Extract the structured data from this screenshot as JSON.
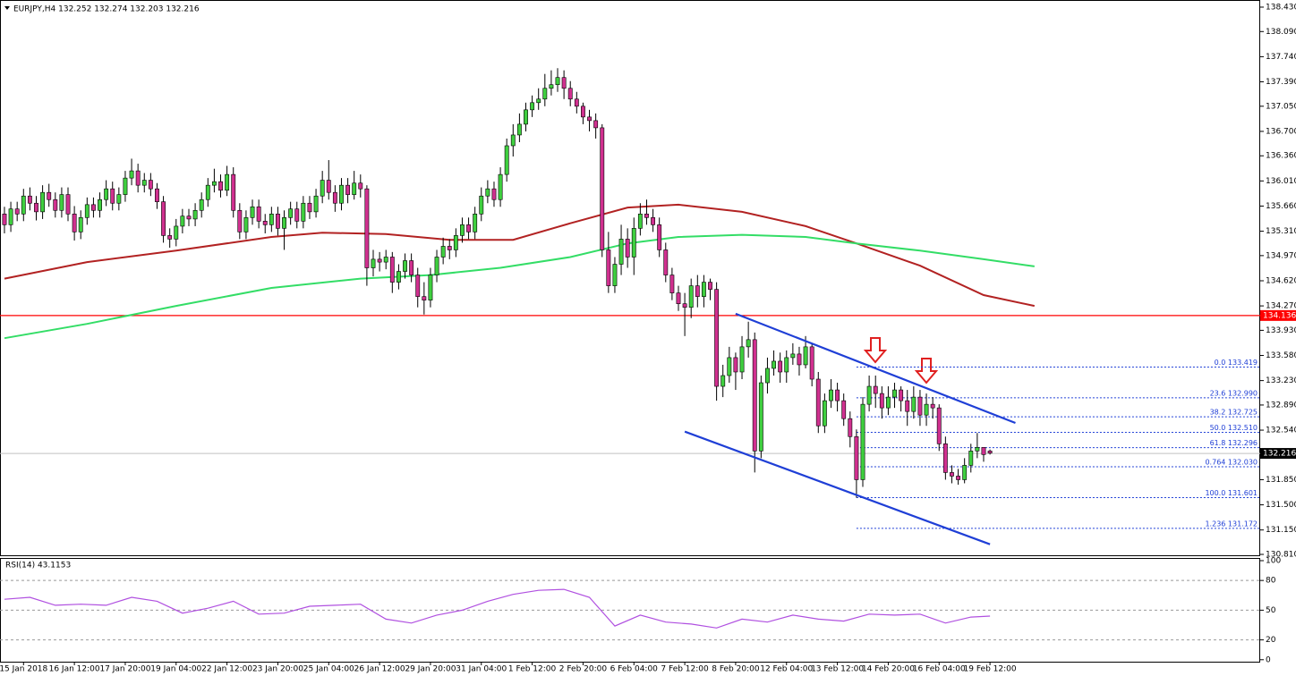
{
  "chart_data": [
    {
      "type": "candlestick",
      "title": "EURJPY,H4  132.252 132.274 132.203 132.216",
      "up_color": "#3fcf3f",
      "down_color": "#d0308f",
      "open": [
        135.55,
        135.4,
        135.62,
        135.55,
        135.8,
        135.7,
        135.58,
        135.85,
        135.75,
        135.6,
        135.82,
        135.55,
        135.3,
        135.5,
        135.68,
        135.6,
        135.75,
        135.9,
        135.7,
        135.82,
        136.05,
        136.15,
        135.95,
        136.02,
        135.9,
        135.72,
        135.25,
        135.2,
        135.38,
        135.52,
        135.48,
        135.6,
        135.75,
        135.95,
        136.0,
        135.88,
        136.1,
        135.6,
        135.3,
        135.5,
        135.65,
        135.45,
        135.4,
        135.55,
        135.35,
        135.5,
        135.62,
        135.45,
        135.7,
        135.58,
        135.8,
        136.02,
        135.85,
        135.7,
        135.95,
        135.82,
        135.98,
        135.9,
        134.8,
        134.92,
        134.88,
        134.95,
        134.6,
        134.75,
        134.9,
        134.7,
        134.4,
        134.35,
        134.7,
        134.95,
        135.1,
        135.05,
        135.25,
        135.4,
        135.3,
        135.55,
        135.8,
        135.9,
        135.75,
        136.1,
        136.5,
        136.65,
        136.8,
        137.0,
        137.1,
        137.15,
        137.3,
        137.35,
        137.45,
        137.3,
        137.15,
        137.05,
        136.9,
        136.85,
        136.75,
        135.05,
        134.55,
        134.85,
        135.2,
        134.95,
        135.35,
        135.55,
        135.5,
        135.4,
        135.05,
        134.7,
        134.45,
        134.3,
        134.25,
        134.55,
        134.4,
        134.6,
        134.5,
        133.15,
        133.3,
        133.55,
        133.35,
        133.7,
        133.8,
        132.25,
        133.2,
        133.4,
        133.5,
        133.35,
        133.55,
        133.6,
        133.45,
        133.7,
        133.25,
        132.6,
        132.95,
        133.1,
        132.95,
        132.7,
        132.45,
        131.85,
        132.9,
        133.15,
        133.05,
        132.85,
        133.0,
        133.1,
        132.95,
        132.8,
        133.0,
        132.75,
        132.9,
        132.85,
        132.35,
        131.95,
        131.9,
        131.85,
        132.05,
        132.25,
        132.3,
        132.25
      ],
      "high": [
        135.65,
        135.72,
        135.72,
        135.9,
        135.92,
        135.8,
        135.95,
        135.97,
        135.85,
        135.92,
        135.92,
        135.66,
        135.6,
        135.78,
        135.78,
        135.85,
        136.02,
        136.0,
        135.92,
        136.15,
        136.32,
        136.25,
        136.12,
        136.12,
        135.98,
        135.8,
        135.35,
        135.48,
        135.62,
        135.62,
        135.7,
        135.85,
        136.05,
        136.18,
        136.1,
        136.22,
        136.2,
        135.7,
        135.6,
        135.75,
        135.75,
        135.55,
        135.65,
        135.65,
        135.6,
        135.72,
        135.72,
        135.8,
        135.8,
        135.9,
        136.15,
        136.3,
        135.95,
        136.05,
        136.05,
        136.15,
        136.1,
        135.95,
        135.05,
        135.02,
        135.05,
        135.02,
        134.85,
        135.0,
        135.0,
        134.8,
        134.6,
        134.8,
        135.05,
        135.22,
        135.2,
        135.35,
        135.5,
        135.5,
        135.65,
        135.92,
        136.02,
        136.0,
        136.2,
        136.6,
        136.8,
        136.95,
        137.1,
        137.2,
        137.3,
        137.5,
        137.55,
        137.58,
        137.55,
        137.4,
        137.25,
        137.1,
        137.0,
        136.95,
        136.8,
        135.3,
        134.95,
        135.4,
        135.35,
        135.5,
        135.7,
        135.75,
        135.62,
        135.5,
        135.15,
        134.8,
        134.55,
        134.45,
        134.65,
        134.7,
        134.7,
        134.65,
        134.6,
        133.45,
        133.7,
        133.62,
        133.85,
        134.05,
        133.9,
        133.3,
        133.55,
        133.65,
        133.62,
        133.65,
        133.75,
        133.7,
        133.85,
        133.75,
        133.35,
        133.05,
        133.25,
        133.2,
        133.05,
        132.8,
        132.55,
        133.0,
        133.3,
        133.3,
        133.15,
        133.15,
        133.2,
        133.15,
        133.1,
        133.15,
        133.1,
        133.05,
        133.0,
        132.9,
        132.45,
        132.05,
        132.0,
        132.15,
        132.35,
        132.5,
        132.3,
        132.27
      ],
      "low": [
        135.28,
        135.3,
        135.45,
        135.45,
        135.6,
        135.46,
        135.48,
        135.65,
        135.5,
        135.5,
        135.45,
        135.18,
        135.2,
        135.4,
        135.5,
        135.5,
        135.66,
        135.6,
        135.6,
        135.72,
        135.95,
        135.85,
        135.85,
        135.8,
        135.62,
        135.15,
        135.08,
        135.1,
        135.28,
        135.38,
        135.38,
        135.5,
        135.65,
        135.85,
        135.78,
        135.8,
        135.5,
        135.2,
        135.2,
        135.4,
        135.35,
        135.28,
        135.3,
        135.25,
        135.05,
        135.4,
        135.35,
        135.35,
        135.48,
        135.5,
        135.7,
        135.75,
        135.58,
        135.6,
        135.7,
        135.75,
        135.78,
        134.55,
        134.68,
        134.75,
        134.78,
        134.45,
        134.5,
        134.65,
        134.6,
        134.25,
        134.15,
        134.25,
        134.6,
        134.85,
        134.92,
        134.95,
        135.15,
        135.2,
        135.2,
        135.45,
        135.7,
        135.65,
        135.65,
        136.0,
        136.35,
        136.55,
        136.7,
        136.9,
        137.0,
        137.05,
        137.2,
        137.25,
        137.15,
        137.05,
        136.95,
        136.8,
        136.7,
        136.6,
        134.95,
        134.45,
        134.45,
        134.7,
        134.8,
        134.7,
        135.25,
        135.4,
        135.3,
        134.95,
        134.6,
        134.35,
        134.2,
        133.85,
        134.1,
        134.25,
        134.25,
        134.35,
        132.95,
        133.0,
        133.2,
        133.1,
        133.25,
        133.55,
        131.95,
        132.15,
        133.05,
        133.3,
        133.2,
        133.2,
        133.45,
        133.3,
        133.4,
        133.15,
        132.5,
        132.5,
        132.85,
        132.8,
        132.6,
        132.3,
        131.6,
        131.75,
        132.8,
        132.85,
        132.7,
        132.75,
        132.85,
        132.8,
        132.6,
        132.7,
        132.6,
        132.6,
        132.7,
        132.25,
        131.85,
        131.8,
        131.78,
        131.8,
        131.95,
        132.15,
        132.1,
        132.2
      ],
      "close": [
        135.4,
        135.62,
        135.55,
        135.8,
        135.7,
        135.58,
        135.85,
        135.75,
        135.6,
        135.82,
        135.55,
        135.3,
        135.5,
        135.68,
        135.6,
        135.75,
        135.9,
        135.7,
        135.82,
        136.05,
        136.15,
        135.95,
        136.02,
        135.9,
        135.72,
        135.25,
        135.2,
        135.38,
        135.52,
        135.48,
        135.6,
        135.75,
        135.95,
        136.0,
        135.88,
        136.1,
        135.6,
        135.3,
        135.5,
        135.65,
        135.45,
        135.4,
        135.55,
        135.35,
        135.5,
        135.62,
        135.45,
        135.7,
        135.58,
        135.8,
        136.02,
        135.85,
        135.7,
        135.95,
        135.82,
        135.98,
        135.9,
        134.8,
        134.92,
        134.88,
        134.95,
        134.6,
        134.75,
        134.9,
        134.7,
        134.4,
        134.35,
        134.7,
        134.95,
        135.1,
        135.05,
        135.25,
        135.4,
        135.3,
        135.55,
        135.8,
        135.9,
        135.75,
        136.1,
        136.5,
        136.65,
        136.8,
        137.0,
        137.1,
        137.15,
        137.3,
        137.35,
        137.45,
        137.3,
        137.15,
        137.05,
        136.9,
        136.85,
        136.75,
        135.05,
        134.55,
        134.85,
        135.2,
        134.95,
        135.35,
        135.55,
        135.5,
        135.4,
        135.05,
        134.7,
        134.45,
        134.3,
        134.25,
        134.55,
        134.4,
        134.6,
        134.5,
        133.15,
        133.3,
        133.55,
        133.35,
        133.7,
        133.8,
        132.25,
        133.2,
        133.4,
        133.5,
        133.35,
        133.55,
        133.6,
        133.45,
        133.7,
        133.25,
        132.6,
        132.95,
        133.1,
        132.95,
        132.7,
        132.45,
        131.85,
        132.9,
        133.15,
        133.05,
        132.85,
        133.0,
        133.1,
        132.95,
        132.8,
        133.0,
        132.75,
        132.9,
        132.85,
        132.35,
        131.95,
        131.9,
        131.85,
        132.05,
        132.25,
        132.3,
        132.2,
        132.22
      ],
      "series": [
        {
          "color": "#b22222",
          "x": [
            0,
            13,
            27,
            42,
            50,
            60,
            70,
            80,
            89,
            98,
            106,
            116,
            126,
            134,
            144,
            154,
            162
          ],
          "values": [
            134.65,
            134.88,
            135.04,
            135.23,
            135.29,
            135.27,
            135.19,
            135.19,
            135.42,
            135.64,
            135.68,
            135.58,
            135.38,
            135.14,
            134.83,
            134.42,
            134.27
          ]
        },
        {
          "color": "#33dd66",
          "x": [
            0,
            13,
            27,
            42,
            56,
            67,
            78,
            89,
            98,
            106,
            116,
            126,
            134,
            144,
            154,
            162
          ],
          "values": [
            133.82,
            134.02,
            134.27,
            134.52,
            134.65,
            134.7,
            134.8,
            134.95,
            135.14,
            135.23,
            135.26,
            135.23,
            135.14,
            135.04,
            134.92,
            134.82
          ]
        }
      ],
      "channel": [
        {
          "color": "#1f3fd6",
          "x": [
            115,
            159
          ],
          "values": [
            134.16,
            132.64
          ]
        },
        {
          "color": "#1f3fd6",
          "x": [
            107,
            155
          ],
          "values": [
            132.52,
            130.95
          ]
        }
      ],
      "price_line": 134.136,
      "price_line_color": "#ff0000",
      "last_price": 132.216,
      "fib_start": 134,
      "fib_color": "#1f3fd6",
      "fib_levels": [
        {
          "value": 133.419,
          "label": "0.0 133.419"
        },
        {
          "value": 132.99,
          "label": "23.6 132.990"
        },
        {
          "value": 132.725,
          "label": "38.2 132.725"
        },
        {
          "value": 132.51,
          "label": "50.0 132.510"
        },
        {
          "value": 132.296,
          "label": "61.8 132.296"
        },
        {
          "value": 132.03,
          "label": "0.764 132.030"
        },
        {
          "value": 131.601,
          "label": "100.0 131.601"
        },
        {
          "value": 131.172,
          "label": "1.236 131.172"
        }
      ],
      "xlim": [
        -0.7,
        197.5
      ],
      "xticks": [
        {
          "value": 3,
          "label": "15 Jan 2018"
        },
        {
          "value": 11,
          "label": "16 Jan 12:00"
        },
        {
          "value": 19,
          "label": "17 Jan 20:00"
        },
        {
          "value": 27,
          "label": "19 Jan 04:00"
        },
        {
          "value": 35,
          "label": "22 Jan 12:00"
        },
        {
          "value": 43,
          "label": "23 Jan 20:00"
        },
        {
          "value": 51,
          "label": "25 Jan 04:00"
        },
        {
          "value": 59,
          "label": "26 Jan 12:00"
        },
        {
          "value": 67,
          "label": "29 Jan 20:00"
        },
        {
          "value": 75,
          "label": "31 Jan 04:00"
        },
        {
          "value": 83,
          "label": "1 Feb 12:00"
        },
        {
          "value": 91,
          "label": "2 Feb 20:00"
        },
        {
          "value": 99,
          "label": "6 Feb 04:00"
        },
        {
          "value": 107,
          "label": "7 Feb 12:00"
        },
        {
          "value": 115,
          "label": "8 Feb 20:00"
        },
        {
          "value": 123,
          "label": "12 Feb 04:00"
        },
        {
          "value": 131,
          "label": "13 Feb 12:00"
        },
        {
          "value": 139,
          "label": "14 Feb 20:00"
        },
        {
          "value": 147,
          "label": "16 Feb 04:00"
        },
        {
          "value": 155,
          "label": "19 Feb 12:00"
        }
      ],
      "ylim": [
        130.785,
        138.492
      ],
      "yticks": [
        {
          "value": 138.43,
          "label": "138.430"
        },
        {
          "value": 138.09,
          "label": "138.090"
        },
        {
          "value": 137.74,
          "label": "137.740"
        },
        {
          "value": 137.39,
          "label": "137.390"
        },
        {
          "value": 137.05,
          "label": "137.050"
        },
        {
          "value": 136.7,
          "label": "136.700"
        },
        {
          "value": 136.36,
          "label": "136.360"
        },
        {
          "value": 136.01,
          "label": "136.010"
        },
        {
          "value": 135.66,
          "label": "135.660"
        },
        {
          "value": 135.31,
          "label": "135.310"
        },
        {
          "value": 134.97,
          "label": "134.970"
        },
        {
          "value": 134.62,
          "label": "134.620"
        },
        {
          "value": 134.27,
          "label": "134.270"
        },
        {
          "value": 133.93,
          "label": "133.930"
        },
        {
          "value": 133.58,
          "label": "133.580"
        },
        {
          "value": 133.23,
          "label": "133.230"
        },
        {
          "value": 132.89,
          "label": "132.890"
        },
        {
          "value": 132.54,
          "label": "132.540"
        },
        {
          "value": 131.85,
          "label": "131.850"
        },
        {
          "value": 131.5,
          "label": "131.500"
        },
        {
          "value": 131.15,
          "label": "131.150"
        },
        {
          "value": 130.81,
          "label": "130.810"
        }
      ]
    },
    {
      "type": "line",
      "title": "RSI(14) 43.1153",
      "color": "#b050e0",
      "x": [
        0,
        4,
        8,
        12,
        16,
        20,
        24,
        28,
        32,
        36,
        40,
        44,
        48,
        52,
        56,
        60,
        64,
        68,
        72,
        76,
        80,
        84,
        88,
        92,
        96,
        100,
        104,
        108,
        112,
        116,
        120,
        124,
        128,
        132,
        136,
        140,
        144,
        148,
        152,
        155
      ],
      "values": [
        61,
        63,
        55,
        56,
        55,
        63,
        59,
        47,
        52,
        59,
        46,
        47,
        54,
        55,
        56,
        41,
        37,
        45,
        50,
        59,
        66,
        70,
        71,
        63,
        34,
        45,
        38,
        36,
        32,
        41,
        38,
        45,
        41,
        39,
        46,
        45,
        46,
        37,
        43,
        44
      ],
      "xlim": [
        -0.7,
        197.5
      ],
      "ylim": [
        -2,
        100
      ],
      "yticks": [
        100,
        80,
        50,
        20,
        0
      ],
      "levels": [
        80,
        50,
        20
      ]
    }
  ]
}
